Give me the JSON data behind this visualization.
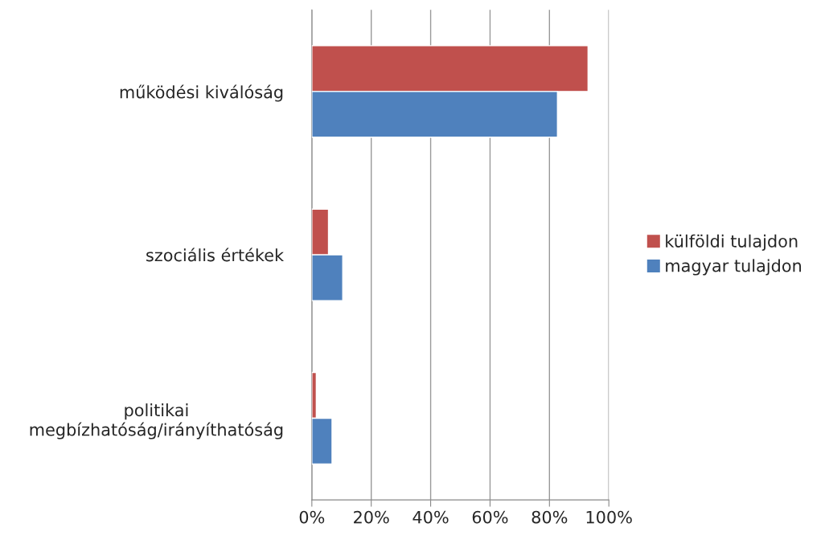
{
  "chart_data": {
    "type": "bar",
    "orientation": "horizontal",
    "categories": [
      "működési kiválóság",
      "szociális értékek",
      "politikai\nmegbízhatóság/irányíthatóság"
    ],
    "series": [
      {
        "name": "külföldi tulajdon",
        "color": "#c0504d",
        "values": [
          93,
          5.6,
          1.5
        ]
      },
      {
        "name": "magyar tulajdon",
        "color": "#4f81bd",
        "values": [
          82.7,
          10.4,
          6.8
        ]
      }
    ],
    "xlim": [
      0,
      100
    ],
    "xticks": [
      {
        "value": 0,
        "label": "0%"
      },
      {
        "value": 20,
        "label": "20%"
      },
      {
        "value": 40,
        "label": "40%"
      },
      {
        "value": 60,
        "label": "60%"
      },
      {
        "value": 80,
        "label": "80%"
      },
      {
        "value": 100,
        "label": "100%"
      }
    ],
    "grid": "x",
    "legend": "right"
  }
}
